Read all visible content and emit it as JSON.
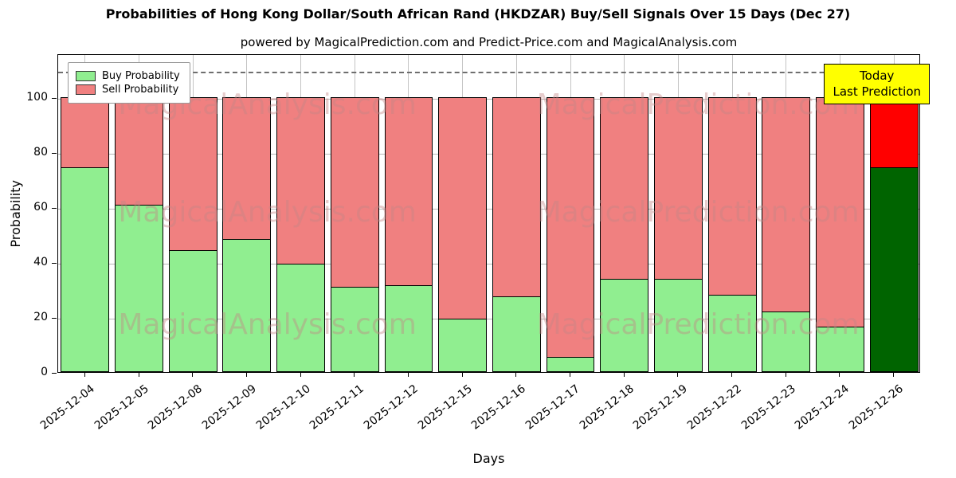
{
  "chart": {
    "title": "Probabilities of Hong Kong Dollar/South African Rand (HKDZAR) Buy/Sell Signals Over 15 Days (Dec 27)",
    "subtitle": "powered by MagicalPrediction.com and Predict-Price.com and MagicalAnalysis.com",
    "ylabel": "Probability",
    "xlabel": "Days",
    "legend": [
      {
        "label": "Buy Probability",
        "color": "#90EE90"
      },
      {
        "label": "Sell Probability",
        "color": "#F08080"
      }
    ],
    "annotation": {
      "line1": "Today",
      "line2": "Last Prediction",
      "bg": "#FFFF00"
    }
  },
  "chart_data": {
    "type": "stacked-bar",
    "categories": [
      "2025-12-04",
      "2025-12-05",
      "2025-12-08",
      "2025-12-09",
      "2025-12-10",
      "2025-12-11",
      "2025-12-12",
      "2025-12-15",
      "2025-12-16",
      "2025-12-17",
      "2025-12-18",
      "2025-12-19",
      "2025-12-22",
      "2025-12-23",
      "2025-12-24",
      "2025-12-26"
    ],
    "series": [
      {
        "name": "Buy Probability",
        "color": "#90EE90",
        "values": [
          74.5,
          61,
          44.5,
          48.5,
          39.5,
          31,
          31.5,
          19.5,
          27.5,
          5.5,
          34,
          34,
          28,
          22,
          16.5,
          74.5
        ]
      },
      {
        "name": "Sell Probability",
        "color": "#F08080",
        "values": [
          25.5,
          39,
          55.5,
          51.5,
          60.5,
          69,
          68.5,
          80.5,
          72.5,
          94.5,
          66,
          66,
          72,
          78,
          83.5,
          25.5
        ]
      }
    ],
    "highlight": {
      "index": 15,
      "buy_color": "#006400",
      "sell_color": "#FF0000"
    },
    "yticks": [
      0,
      20,
      40,
      60,
      80,
      100
    ],
    "ylim": [
      0,
      116
    ],
    "dashed_line_y": 110,
    "grid": true,
    "legend_position": "upper left",
    "watermarks": [
      "MagicalAnalysis.com",
      "MagicalPrediction.com"
    ]
  }
}
